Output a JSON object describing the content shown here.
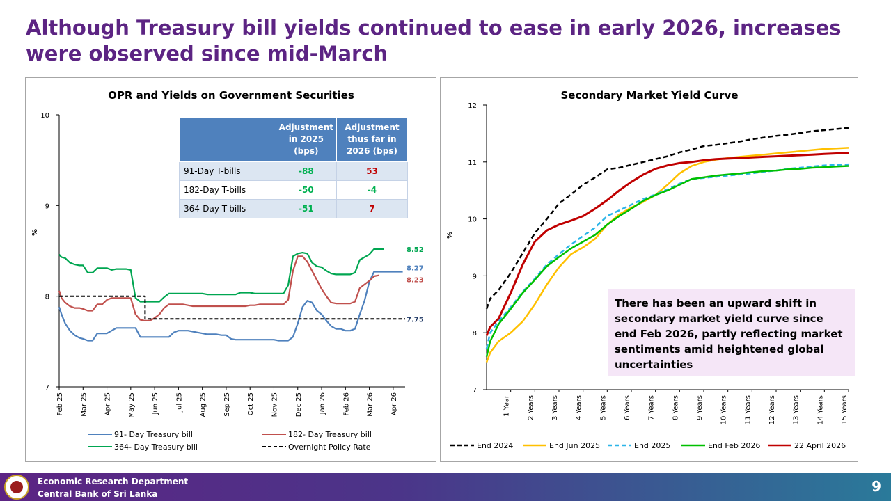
{
  "slide": {
    "title": "Although Treasury bill yields continued to ease in early 2026, increases were observed since mid-March",
    "footer_line1": "Economic Research Department",
    "footer_line2": "Central Bank of Sri Lanka",
    "page_number": "9"
  },
  "adjustment_table": {
    "headers": [
      "",
      "Adjustment in 2025 (bps)",
      "Adjustment thus far in 2026 (bps)"
    ],
    "rows": [
      {
        "label": "91-Day T-bills",
        "v2025": "-88",
        "v2026": "53",
        "c2025": "#00b050",
        "c2026": "#c00000"
      },
      {
        "label": "182-Day T-bills",
        "v2025": "-50",
        "v2026": "-4",
        "c2025": "#00b050",
        "c2026": "#00b050"
      },
      {
        "label": "364-Day T-bills",
        "v2025": "-51",
        "v2026": "7",
        "c2025": "#00b050",
        "c2026": "#c00000"
      }
    ]
  },
  "annotation": {
    "text": "There has been an upward shift in secondary market yield curve since end Feb 2026, partly reflecting market sentiments amid heightened global uncertainties"
  },
  "chart_data": [
    {
      "type": "line",
      "title": "OPR and Yields on Government Securities",
      "ylabel": "%",
      "ylim": [
        7,
        10
      ],
      "yticks": [
        "7",
        "8",
        "9",
        "10"
      ],
      "grid": false,
      "legend_placement": "bottom",
      "x_labels": [
        "Feb 25",
        "Mar 25",
        "Apr 25",
        "May 25",
        "Jun 25",
        "Jul 25",
        "Aug 25",
        "Sep 25",
        "Oct 25",
        "Nov 25",
        "Dec 25",
        "Jan 26",
        "Feb 26",
        "Mar 26",
        "Apr 26"
      ],
      "x_domain": [
        0,
        14.5
      ],
      "series": [
        {
          "name": "91- Day Treasury bill",
          "color": "#4f81bd",
          "end_label": "8.27",
          "x": [
            0,
            0.1,
            0.25,
            0.45,
            0.65,
            0.85,
            1.0,
            1.2,
            1.4,
            1.6,
            1.8,
            2.0,
            2.2,
            2.4,
            2.6,
            2.8,
            3.0,
            3.2,
            3.4,
            3.6,
            3.8,
            4.0,
            4.2,
            4.4,
            4.6,
            4.8,
            5.0,
            5.2,
            5.4,
            5.6,
            5.8,
            6.0,
            6.2,
            6.4,
            6.6,
            6.8,
            7.0,
            7.2,
            7.4,
            7.6,
            7.8,
            8.0,
            8.2,
            8.4,
            8.6,
            8.8,
            9.0,
            9.2,
            9.4,
            9.6,
            9.8,
            10.0,
            10.2,
            10.4,
            10.6,
            10.8,
            11.0,
            11.2,
            11.4,
            11.6,
            11.8,
            12.0,
            12.2,
            12.4,
            12.6,
            12.8,
            13.0,
            13.2,
            13.4,
            13.6,
            13.8,
            14.0,
            14.2,
            14.4
          ],
          "y": [
            7.88,
            7.8,
            7.7,
            7.62,
            7.57,
            7.54,
            7.53,
            7.51,
            7.51,
            7.59,
            7.59,
            7.59,
            7.62,
            7.65,
            7.65,
            7.65,
            7.65,
            7.65,
            7.55,
            7.55,
            7.55,
            7.55,
            7.55,
            7.55,
            7.55,
            7.6,
            7.62,
            7.62,
            7.62,
            7.61,
            7.6,
            7.59,
            7.58,
            7.58,
            7.58,
            7.57,
            7.57,
            7.53,
            7.52,
            7.52,
            7.52,
            7.52,
            7.52,
            7.52,
            7.52,
            7.52,
            7.52,
            7.51,
            7.51,
            7.51,
            7.55,
            7.7,
            7.88,
            7.95,
            7.93,
            7.84,
            7.8,
            7.73,
            7.67,
            7.64,
            7.64,
            7.62,
            7.62,
            7.64,
            7.8,
            7.95,
            8.16,
            8.27,
            8.27,
            8.27,
            8.27,
            8.27,
            8.27,
            8.27
          ]
        },
        {
          "name": "182- Day Treasury bill",
          "color": "#c0504d",
          "end_label": "8.23",
          "x": [
            0,
            0.1,
            0.25,
            0.45,
            0.65,
            0.85,
            1.0,
            1.2,
            1.4,
            1.6,
            1.8,
            2.0,
            2.2,
            2.4,
            2.6,
            2.8,
            3.0,
            3.2,
            3.4,
            3.6,
            3.8,
            4.0,
            4.2,
            4.4,
            4.6,
            4.8,
            5.0,
            5.2,
            5.4,
            5.6,
            5.8,
            6.0,
            6.2,
            6.4,
            6.6,
            6.8,
            7.0,
            7.2,
            7.4,
            7.6,
            7.8,
            8.0,
            8.2,
            8.4,
            8.6,
            8.8,
            9.0,
            9.2,
            9.4,
            9.6,
            9.8,
            10.0,
            10.2,
            10.4,
            10.6,
            10.8,
            11.0,
            11.2,
            11.4,
            11.6,
            11.8,
            12.0,
            12.2,
            12.4,
            12.6,
            12.8,
            13.0,
            13.2,
            13.4
          ],
          "y": [
            8.06,
            7.98,
            7.93,
            7.89,
            7.87,
            7.87,
            7.86,
            7.84,
            7.84,
            7.91,
            7.91,
            7.96,
            7.98,
            7.98,
            7.98,
            7.98,
            7.98,
            7.8,
            7.74,
            7.73,
            7.73,
            7.76,
            7.8,
            7.87,
            7.91,
            7.91,
            7.91,
            7.91,
            7.9,
            7.89,
            7.89,
            7.89,
            7.89,
            7.89,
            7.89,
            7.89,
            7.89,
            7.89,
            7.89,
            7.89,
            7.89,
            7.9,
            7.9,
            7.91,
            7.91,
            7.91,
            7.91,
            7.91,
            7.91,
            7.96,
            8.28,
            8.44,
            8.44,
            8.38,
            8.28,
            8.18,
            8.08,
            8.0,
            7.93,
            7.92,
            7.92,
            7.92,
            7.92,
            7.94,
            8.09,
            8.13,
            8.17,
            8.22,
            8.23
          ]
        },
        {
          "name": "364- Day Treasury bill",
          "color": "#00a651",
          "end_label": "8.52",
          "x": [
            0,
            0.1,
            0.25,
            0.45,
            0.65,
            0.85,
            1.0,
            1.2,
            1.4,
            1.6,
            1.8,
            2.0,
            2.2,
            2.4,
            2.6,
            2.8,
            3.0,
            3.2,
            3.4,
            3.6,
            3.8,
            4.0,
            4.2,
            4.4,
            4.6,
            4.8,
            5.0,
            5.2,
            5.4,
            5.6,
            5.8,
            6.0,
            6.2,
            6.4,
            6.6,
            6.8,
            7.0,
            7.2,
            7.4,
            7.6,
            7.8,
            8.0,
            8.2,
            8.4,
            8.6,
            8.8,
            9.0,
            9.2,
            9.4,
            9.6,
            9.8,
            10.0,
            10.2,
            10.4,
            10.6,
            10.8,
            11.0,
            11.2,
            11.4,
            11.6,
            11.8,
            12.0,
            12.2,
            12.4,
            12.6,
            12.8,
            13.0,
            13.2,
            13.4,
            13.6
          ],
          "y": [
            8.46,
            8.43,
            8.42,
            8.37,
            8.35,
            8.34,
            8.34,
            8.26,
            8.26,
            8.31,
            8.31,
            8.31,
            8.29,
            8.3,
            8.3,
            8.3,
            8.29,
            7.98,
            7.94,
            7.94,
            7.94,
            7.94,
            7.94,
            7.99,
            8.03,
            8.03,
            8.03,
            8.03,
            8.03,
            8.03,
            8.03,
            8.03,
            8.02,
            8.02,
            8.02,
            8.02,
            8.02,
            8.02,
            8.02,
            8.04,
            8.04,
            8.04,
            8.03,
            8.03,
            8.03,
            8.03,
            8.03,
            8.03,
            8.03,
            8.12,
            8.44,
            8.47,
            8.48,
            8.47,
            8.37,
            8.33,
            8.32,
            8.28,
            8.25,
            8.24,
            8.24,
            8.24,
            8.24,
            8.26,
            8.4,
            8.43,
            8.46,
            8.52,
            8.52,
            8.52
          ]
        },
        {
          "name": "Overnight Policy Rate",
          "color": "#000000",
          "dash": true,
          "end_label": "7.75",
          "x": [
            0,
            3.6,
            3.6,
            14.5
          ],
          "y": [
            8.0,
            8.0,
            7.75,
            7.75
          ]
        }
      ]
    },
    {
      "type": "line",
      "title": "Secondary Market Yield Curve",
      "ylabel": "%",
      "ylim": [
        7,
        12
      ],
      "yticks": [
        "7",
        "8",
        "9",
        "10",
        "11",
        "12"
      ],
      "grid": false,
      "legend_placement": "bottom",
      "x_labels": [
        "1 Year",
        "2 Years",
        "3 Years",
        "4 Years",
        "5 Years",
        "6 Years",
        "7 Years",
        "8 Years",
        "9 Years",
        "10 Years",
        "11 Years",
        "12 Years",
        "13 Years",
        "14 Years",
        "15 Years"
      ],
      "x_domain": [
        0,
        15
      ],
      "series": [
        {
          "name": "End 2024",
          "color": "#000000",
          "dash": true,
          "x": [
            0,
            0.15,
            0.5,
            1,
            1.5,
            2,
            2.5,
            3,
            3.5,
            4,
            4.5,
            5,
            5.5,
            6,
            6.5,
            7,
            7.5,
            8,
            8.5,
            9,
            9.5,
            10,
            10.5,
            11,
            11.5,
            12,
            12.5,
            13,
            13.5,
            14,
            14.5,
            15
          ],
          "y": [
            8.42,
            8.6,
            8.75,
            9.05,
            9.4,
            9.75,
            10.0,
            10.27,
            10.43,
            10.6,
            10.73,
            10.87,
            10.9,
            10.95,
            11.0,
            11.05,
            11.1,
            11.17,
            11.22,
            11.28,
            11.3,
            11.33,
            11.36,
            11.4,
            11.43,
            11.46,
            11.48,
            11.51,
            11.54,
            11.56,
            11.58,
            11.6
          ]
        },
        {
          "name": "End Jun 2025",
          "color": "#ffc000",
          "x": [
            0,
            0.15,
            0.5,
            1,
            1.5,
            2,
            2.5,
            3,
            3.5,
            4,
            4.5,
            5,
            5.5,
            6,
            6.5,
            7,
            7.5,
            8,
            8.5,
            9,
            9.5,
            10,
            10.5,
            11,
            11.5,
            12,
            12.5,
            13,
            13.5,
            14,
            14.5,
            15
          ],
          "y": [
            7.48,
            7.65,
            7.85,
            8.0,
            8.2,
            8.5,
            8.85,
            9.15,
            9.38,
            9.5,
            9.65,
            9.9,
            10.08,
            10.2,
            10.3,
            10.42,
            10.6,
            10.8,
            10.93,
            11.0,
            11.04,
            11.07,
            11.09,
            11.11,
            11.13,
            11.15,
            11.17,
            11.19,
            11.21,
            11.23,
            11.24,
            11.25
          ]
        },
        {
          "name": "End 2025",
          "color": "#2cb5e8",
          "dash": true,
          "x": [
            0,
            0.15,
            0.5,
            1,
            1.5,
            2,
            2.5,
            3,
            3.5,
            4,
            4.5,
            5,
            5.5,
            6,
            6.5,
            7,
            7.5,
            8,
            8.5,
            9,
            9.5,
            10,
            10.5,
            11,
            11.5,
            12,
            12.5,
            13,
            13.5,
            14,
            14.5,
            15
          ],
          "y": [
            7.72,
            8.0,
            8.2,
            8.45,
            8.72,
            8.95,
            9.2,
            9.38,
            9.55,
            9.7,
            9.85,
            10.05,
            10.15,
            10.25,
            10.35,
            10.43,
            10.52,
            10.62,
            10.7,
            10.72,
            10.74,
            10.76,
            10.78,
            10.8,
            10.83,
            10.85,
            10.88,
            10.9,
            10.92,
            10.94,
            10.95,
            10.96
          ]
        },
        {
          "name": "End Feb 2026",
          "color": "#00c000",
          "x": [
            0,
            0.15,
            0.5,
            1,
            1.5,
            2,
            2.5,
            3,
            3.5,
            4,
            4.5,
            5,
            5.5,
            6,
            6.5,
            7,
            7.5,
            8,
            8.5,
            9,
            9.5,
            10,
            10.5,
            11,
            11.5,
            12,
            12.5,
            13,
            13.5,
            14,
            14.5,
            15
          ],
          "y": [
            7.58,
            7.85,
            8.15,
            8.42,
            8.7,
            8.93,
            9.17,
            9.33,
            9.48,
            9.6,
            9.72,
            9.9,
            10.05,
            10.18,
            10.32,
            10.42,
            10.5,
            10.6,
            10.7,
            10.73,
            10.76,
            10.78,
            10.8,
            10.82,
            10.84,
            10.85,
            10.87,
            10.88,
            10.9,
            10.91,
            10.92,
            10.93
          ]
        },
        {
          "name": "22 April 2026",
          "color": "#c00000",
          "x": [
            0,
            0.15,
            0.5,
            1,
            1.5,
            2,
            2.5,
            3,
            3.5,
            4,
            4.5,
            5,
            5.5,
            6,
            6.5,
            7,
            7.5,
            8,
            8.5,
            9,
            9.5,
            10,
            10.5,
            11,
            11.5,
            12,
            12.5,
            13,
            13.5,
            14,
            14.5,
            15
          ],
          "y": [
            7.95,
            8.1,
            8.25,
            8.7,
            9.2,
            9.6,
            9.8,
            9.9,
            9.97,
            10.05,
            10.18,
            10.33,
            10.5,
            10.65,
            10.78,
            10.88,
            10.94,
            10.98,
            11.0,
            11.03,
            11.05,
            11.06,
            11.07,
            11.08,
            11.09,
            11.1,
            11.11,
            11.12,
            11.13,
            11.14,
            11.15,
            11.16
          ]
        }
      ]
    }
  ]
}
